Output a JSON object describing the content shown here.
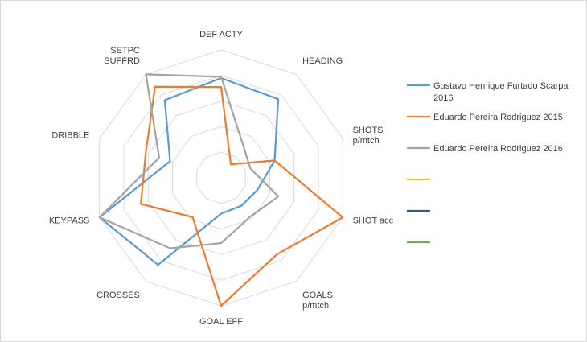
{
  "chart_data": {
    "type": "radar",
    "title": "",
    "axes": [
      [
        "DEF ACTY"
      ],
      [
        "HEADING"
      ],
      [
        "SHOTS",
        "p/mtch"
      ],
      [
        "SHOT acc"
      ],
      [
        "GOALS",
        "p/mtch"
      ],
      [
        "GOAL EFF"
      ],
      [
        "CROSSES"
      ],
      [
        "KEYPASS"
      ],
      [
        "DRIBBLE"
      ],
      [
        "SETPC",
        "SUFFRD"
      ]
    ],
    "range": [
      0,
      100
    ],
    "grid_levels": 5,
    "series": [
      {
        "name": "Gustavo Henrique Furtado Scarpa 2016",
        "color": "#5b9bd5",
        "values": [
          78,
          76,
          44,
          30,
          27,
          28,
          84,
          100,
          42,
          75
        ]
      },
      {
        "name": "Eduardo Pereira Rodriguez 2015",
        "color": "#ed7d31",
        "values": [
          71,
          13,
          44,
          100,
          74,
          100,
          38,
          66,
          62,
          88
        ]
      },
      {
        "name": "Eduardo Pereira Rodriguez 2016",
        "color": "#a5a5a5",
        "values": [
          79,
          30,
          24,
          47,
          38,
          51,
          68,
          100,
          51,
          100
        ]
      },
      {
        "name": "",
        "color": "#ffc000",
        "values": []
      },
      {
        "name": "",
        "color": "#255e91",
        "values": []
      },
      {
        "name": "",
        "color": "#70ad47",
        "values": []
      }
    ],
    "legend_position": "right"
  }
}
